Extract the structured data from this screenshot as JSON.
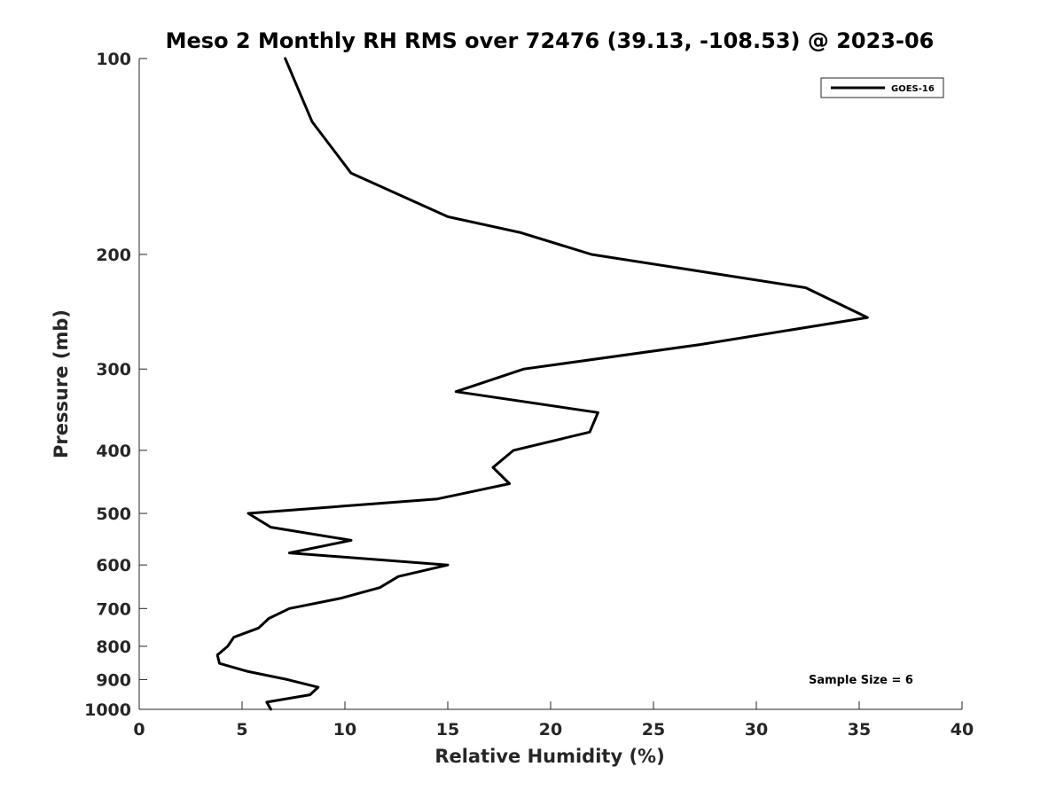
{
  "chart_data": {
    "type": "line",
    "title": "Meso 2 Monthly RH RMS over 72476 (39.13, -108.53) @ 2023-06",
    "xlabel": "Relative Humidity (%)",
    "ylabel": "Pressure (mb)",
    "xlim": [
      0,
      40
    ],
    "ylim": [
      100,
      1000
    ],
    "y_scale": "log",
    "y_reversed": true,
    "grid": false,
    "legend_position": "top-right",
    "x_ticks": [
      0,
      5,
      10,
      15,
      20,
      25,
      30,
      35,
      40
    ],
    "x_tick_labels": [
      "0",
      "5",
      "10",
      "15",
      "20",
      "25",
      "30",
      "35",
      "40"
    ],
    "y_ticks": [
      100,
      200,
      300,
      400,
      500,
      600,
      700,
      800,
      900,
      1000
    ],
    "y_tick_labels": [
      "100",
      "200",
      "300",
      "400",
      "500",
      "600",
      "700",
      "800",
      "900",
      "1000"
    ],
    "series": [
      {
        "name": "GOES-16",
        "color": "#000000",
        "points": [
          {
            "rh": 7.1,
            "p": 100
          },
          {
            "rh": 8.4,
            "p": 125
          },
          {
            "rh": 10.3,
            "p": 150
          },
          {
            "rh": 15.0,
            "p": 175
          },
          {
            "rh": 18.5,
            "p": 185
          },
          {
            "rh": 22.0,
            "p": 200
          },
          {
            "rh": 32.4,
            "p": 225
          },
          {
            "rh": 35.4,
            "p": 250
          },
          {
            "rh": 27.3,
            "p": 275
          },
          {
            "rh": 18.7,
            "p": 300
          },
          {
            "rh": 15.4,
            "p": 325
          },
          {
            "rh": 22.3,
            "p": 350
          },
          {
            "rh": 21.9,
            "p": 375
          },
          {
            "rh": 18.2,
            "p": 400
          },
          {
            "rh": 17.2,
            "p": 425
          },
          {
            "rh": 18.0,
            "p": 450
          },
          {
            "rh": 14.5,
            "p": 475
          },
          {
            "rh": 5.3,
            "p": 500
          },
          {
            "rh": 6.4,
            "p": 525
          },
          {
            "rh": 10.3,
            "p": 550
          },
          {
            "rh": 7.3,
            "p": 575
          },
          {
            "rh": 15.0,
            "p": 600
          },
          {
            "rh": 12.6,
            "p": 625
          },
          {
            "rh": 11.7,
            "p": 650
          },
          {
            "rh": 9.8,
            "p": 675
          },
          {
            "rh": 7.3,
            "p": 700
          },
          {
            "rh": 6.3,
            "p": 725
          },
          {
            "rh": 5.8,
            "p": 750
          },
          {
            "rh": 4.6,
            "p": 775
          },
          {
            "rh": 4.3,
            "p": 800
          },
          {
            "rh": 3.8,
            "p": 825
          },
          {
            "rh": 3.9,
            "p": 850
          },
          {
            "rh": 5.3,
            "p": 875
          },
          {
            "rh": 7.2,
            "p": 900
          },
          {
            "rh": 8.7,
            "p": 925
          },
          {
            "rh": 8.3,
            "p": 950
          },
          {
            "rh": 6.2,
            "p": 975
          },
          {
            "rh": 6.4,
            "p": 1000
          }
        ]
      }
    ],
    "annotations": [
      {
        "text": "Sample Size = 6",
        "position": "bottom-right"
      }
    ]
  }
}
